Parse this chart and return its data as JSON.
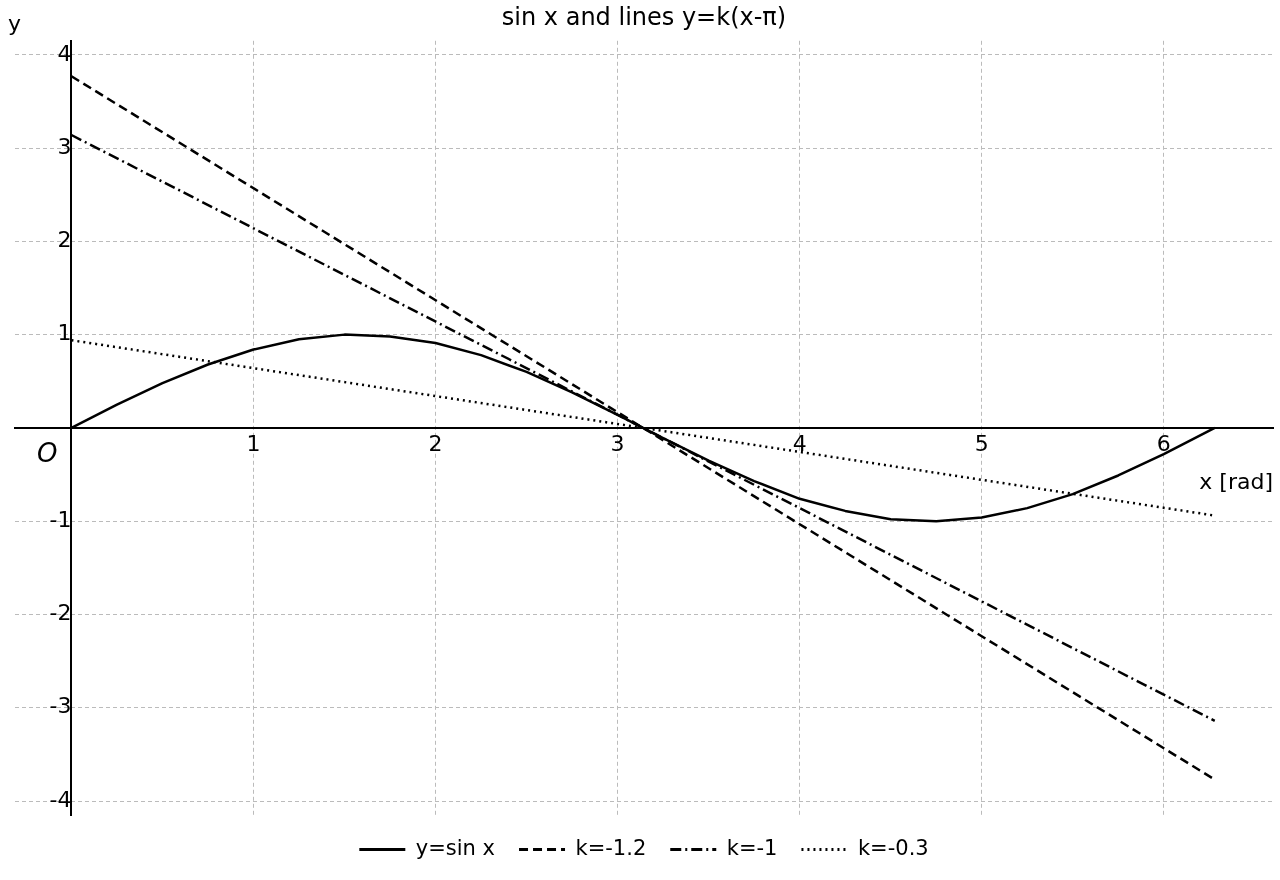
{
  "chart_data": {
    "type": "line",
    "title": "sin x and lines y=k(x-π)",
    "xlabel": "x [rad]",
    "ylabel": "y",
    "annotations": [
      {
        "text": "O",
        "x": 0,
        "y": 0
      }
    ],
    "xlim": [
      -0.31,
      6.6
    ],
    "ylim": [
      -4.15,
      4.15
    ],
    "xticks": [
      1,
      2,
      3,
      4,
      5,
      6
    ],
    "yticks": [
      -4,
      -3,
      -2,
      -1,
      1,
      2,
      3,
      4
    ],
    "grid": true,
    "legend": "bottom",
    "marker": "none",
    "series": [
      {
        "name": "y=sin x",
        "color": "#000000",
        "line_style": "solid",
        "x": [
          0,
          0.25,
          0.5,
          0.75,
          1,
          1.25,
          1.5,
          1.75,
          2,
          2.25,
          2.5,
          2.75,
          3,
          3.25,
          3.5,
          3.75,
          4,
          4.25,
          4.5,
          4.75,
          5,
          5.25,
          5.5,
          5.75,
          6,
          6.28
        ],
        "values": [
          0,
          0.25,
          0.48,
          0.68,
          0.84,
          0.95,
          1.0,
          0.98,
          0.91,
          0.78,
          0.6,
          0.38,
          0.14,
          -0.11,
          -0.35,
          -0.57,
          -0.76,
          -0.89,
          -0.98,
          -1.0,
          -0.96,
          -0.86,
          -0.71,
          -0.51,
          -0.28,
          0
        ]
      },
      {
        "name": "k=-1.2",
        "color": "#000000",
        "line_style": "dashed",
        "x": [
          0,
          6.28
        ],
        "values": [
          3.77,
          -3.77
        ]
      },
      {
        "name": "k=-1",
        "color": "#000000",
        "line_style": "dashdot",
        "x": [
          0,
          6.28
        ],
        "values": [
          3.14,
          -3.14
        ]
      },
      {
        "name": "k=-0.3",
        "color": "#000000",
        "line_style": "dotted",
        "x": [
          0,
          6.28
        ],
        "values": [
          0.94,
          -0.94
        ]
      }
    ]
  }
}
